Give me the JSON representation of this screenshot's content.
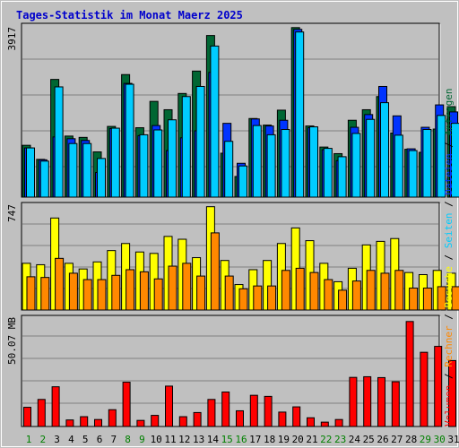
{
  "title": "Tages-Statistik im Monat Maerz 2025",
  "colors": {
    "background": "#c0c0c0",
    "title": "#0000cc",
    "anfragen": "#006633",
    "dateien": "#0033ff",
    "seiten": "#00ccff",
    "besuche": "#ffff00",
    "rechner": "#ff8800",
    "volumen": "#ff0000",
    "weekend": "#008000",
    "weekday": "#000000",
    "grid": "#808080"
  },
  "right_labels": {
    "anfragen": "Anfragen",
    "dateien": "Dateien",
    "seiten": "Seiten",
    "besuche": "Besuche",
    "rechner": "Rechner",
    "volumen": "Volumen",
    "sep1": "/",
    "sep2": "/",
    "sep3": "/",
    "sep4": "/",
    "sep5": "/"
  },
  "chart_data": {
    "type": "bar",
    "categories": [
      "1",
      "2",
      "3",
      "4",
      "5",
      "6",
      "7",
      "8",
      "9",
      "10",
      "11",
      "12",
      "13",
      "14",
      "15",
      "16",
      "17",
      "18",
      "19",
      "20",
      "21",
      "22",
      "23",
      "24",
      "25",
      "26",
      "27",
      "28",
      "29",
      "30",
      "31"
    ],
    "weekend_days": [
      "1",
      "2",
      "8",
      "9",
      "15",
      "16",
      "22",
      "23",
      "29",
      "30"
    ],
    "panels": [
      {
        "ylabel": "3917",
        "ymax": 3917,
        "series": [
          {
            "name": "Anfragen",
            "values": [
              1180,
              860,
              2680,
              1390,
              1360,
              1030,
              1610,
              2790,
              1580,
              2180,
              1990,
              2360,
              2870,
              3680,
              1000,
              470,
              1790,
              1640,
              1980,
              3860,
              1620,
              1140,
              990,
              1750,
              1990,
              2290,
              1460,
              1090,
              1020,
              1550,
              2060
            ]
          },
          {
            "name": "Dateien",
            "values": [
              1120,
              850,
              1370,
              1330,
              1290,
              560,
              1560,
              2590,
              1400,
              1630,
              1060,
              1350,
              1510,
              2840,
              1680,
              770,
              1780,
              1620,
              1750,
              3820,
              1580,
              1080,
              830,
              1590,
              1880,
              2520,
              1850,
              1100,
              1590,
              2100,
              1940
            ]
          },
          {
            "name": "Seiten",
            "values": [
              1120,
              820,
              2510,
              1220,
              1220,
              880,
              1570,
              2570,
              1420,
              1530,
              1760,
              2290,
              2520,
              3440,
              1270,
              710,
              1630,
              1420,
              1540,
              3760,
              1600,
              1110,
              920,
              1450,
              1770,
              2150,
              1410,
              1060,
              1540,
              1860,
              1680
            ]
          }
        ]
      },
      {
        "ylabel": "747",
        "ymax": 747,
        "series": [
          {
            "name": "Besuche",
            "values": [
              330,
              320,
              650,
              330,
              290,
              340,
              420,
              470,
              410,
              400,
              520,
              500,
              370,
              730,
              350,
              180,
              285,
              350,
              470,
              580,
              490,
              330,
              200,
              295,
              460,
              485,
              505,
              265,
              250,
              280,
              260
            ]
          },
          {
            "name": "Rechner",
            "values": [
              235,
              230,
              365,
              260,
              215,
              215,
              245,
              285,
              270,
              220,
              310,
              330,
              240,
              545,
              240,
              150,
              170,
              170,
              280,
              295,
              265,
              215,
              140,
              205,
              280,
              260,
              280,
              155,
              155,
              165,
              165
            ]
          }
        ]
      },
      {
        "ylabel": "50.07 MB",
        "ymax": 50.07,
        "series": [
          {
            "name": "Volumen",
            "values": [
              8.8,
              12.4,
              18.2,
              3.0,
              4.5,
              3.2,
              7.7,
              20.3,
              2.8,
              5.1,
              18.5,
              4.5,
              6.4,
              12.4,
              15.8,
              7.2,
              14.3,
              13.8,
              6.6,
              9.0,
              4.0,
              2.0,
              3.2,
              22.5,
              22.8,
              22.4,
              20.5,
              48.1,
              34.0,
              36.7,
              30.2
            ]
          }
        ]
      }
    ]
  }
}
